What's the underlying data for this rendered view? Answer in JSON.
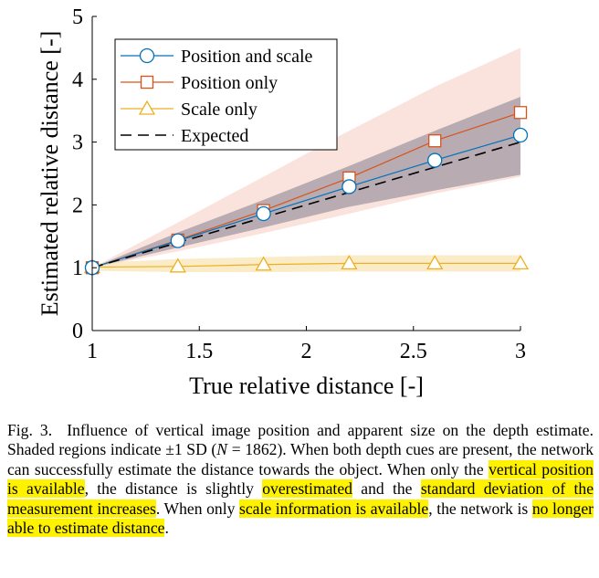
{
  "chart_data": {
    "type": "line",
    "xlabel": "True relative distance [-]",
    "ylabel": "Estimated relative distance [-]",
    "xlim": [
      1,
      3
    ],
    "ylim": [
      0,
      5
    ],
    "xticks": [
      1,
      1.5,
      2,
      2.5,
      3
    ],
    "xtick_labels": [
      "1",
      "1.5",
      "2",
      "2.5",
      "3"
    ],
    "yticks": [
      0,
      1,
      2,
      3,
      4,
      5
    ],
    "ytick_labels": [
      "0",
      "1",
      "2",
      "3",
      "4",
      "5"
    ],
    "grid": false,
    "legend_position": "top-left",
    "x": [
      1,
      1.4,
      1.8,
      2.2,
      2.6,
      3
    ],
    "series": [
      {
        "name": "Position and scale",
        "color": "#0072bd",
        "marker": "circle",
        "values": [
          1.0,
          1.43,
          1.86,
          2.29,
          2.71,
          3.11
        ],
        "band_lower": [
          1.0,
          1.32,
          1.64,
          1.97,
          2.23,
          2.48
        ],
        "band_upper": [
          1.0,
          1.56,
          2.08,
          2.62,
          3.18,
          3.72
        ],
        "band_color": "#1f2f4f"
      },
      {
        "name": "Position only",
        "color": "#d95319",
        "marker": "square",
        "values": [
          1.0,
          1.44,
          1.91,
          2.43,
          3.02,
          3.47
        ],
        "band_lower": [
          1.0,
          1.26,
          1.55,
          1.86,
          2.18,
          2.45
        ],
        "band_upper": [
          1.0,
          1.72,
          2.45,
          3.18,
          3.88,
          4.5
        ],
        "band_color": "#f5b5a5"
      },
      {
        "name": "Scale only",
        "color": "#edb120",
        "marker": "triangle",
        "values": [
          1.01,
          1.02,
          1.05,
          1.07,
          1.07,
          1.07
        ],
        "band_lower": [
          0.95,
          0.93,
          0.93,
          0.94,
          0.94,
          0.94
        ],
        "band_upper": [
          1.07,
          1.14,
          1.17,
          1.2,
          1.2,
          1.2
        ],
        "band_color": "#f7dc9c"
      },
      {
        "name": "Expected",
        "color": "#000000",
        "marker": "none",
        "dashed": true,
        "values": [
          1.0,
          1.4,
          1.8,
          2.2,
          2.6,
          3.0
        ]
      }
    ]
  },
  "caption": {
    "fig_label": "Fig. 3.",
    "part1": "Influence of vertical image position and apparent size on the depth estimate. Shaded regions indicate ±1 SD (",
    "n_symbol": "N",
    "part2": " = 1862). When both depth cues are present, the network can successfully estimate the distance towards the object. When only the ",
    "hl1": "vertical position is available",
    "part3": ", the distance is slightly ",
    "hl2": "overestimated",
    "part4": " and the ",
    "hl3": "standard deviation of the measurement increases",
    "part5": ". When only ",
    "hl4": "scale information is available",
    "part6": ", the network is ",
    "hl5": "no longer able to estimate distance",
    "part7": ".",
    "highlight_color": "#fff200"
  }
}
